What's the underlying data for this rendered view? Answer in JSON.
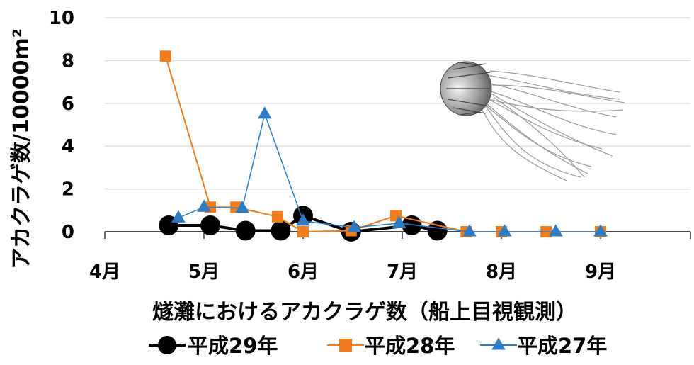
{
  "chart_data": {
    "type": "line",
    "title": "",
    "xlabel": "燧灘におけるアカクラゲ数（船上目視観測）",
    "ylabel": "アカクラゲ数/10000m²",
    "ylim": [
      0,
      10
    ],
    "yticks": [
      "0",
      "2",
      "4",
      "6",
      "8",
      "10"
    ],
    "xticks": [
      "4月",
      "5月",
      "6月",
      "7月",
      "8月",
      "9月"
    ],
    "grid": "horizontal",
    "legend_position": "bottom",
    "series": [
      {
        "name": "平成29年",
        "color": "#000000",
        "marker": "circle",
        "points": [
          {
            "x": "4/21",
            "y": 0.3
          },
          {
            "x": "5/3",
            "y": 0.3
          },
          {
            "x": "5/14",
            "y": 0.05
          },
          {
            "x": "5/25",
            "y": 0.05
          },
          {
            "x": "6/1",
            "y": 0.75
          },
          {
            "x": "6/16",
            "y": 0.0
          },
          {
            "x": "7/4",
            "y": 0.3
          },
          {
            "x": "7/12",
            "y": 0.05
          }
        ]
      },
      {
        "name": "平成28年",
        "color": "#F07C1E",
        "marker": "square",
        "points": [
          {
            "x": "4/20",
            "y": 8.2
          },
          {
            "x": "5/3",
            "y": 1.15
          },
          {
            "x": "5/11",
            "y": 1.15
          },
          {
            "x": "5/24",
            "y": 0.7
          },
          {
            "x": "6/1",
            "y": 0.0
          },
          {
            "x": "6/16",
            "y": 0.05
          },
          {
            "x": "6/30",
            "y": 0.75
          },
          {
            "x": "7/21",
            "y": 0.0
          },
          {
            "x": "8/1",
            "y": 0.0
          },
          {
            "x": "8/15",
            "y": 0.0
          },
          {
            "x": "9/1",
            "y": 0.0
          }
        ]
      },
      {
        "name": "平成27年",
        "color": "#2E7BC4",
        "marker": "triangle",
        "points": [
          {
            "x": "4/24",
            "y": 0.65
          },
          {
            "x": "5/1",
            "y": 1.15
          },
          {
            "x": "5/13",
            "y": 1.1
          },
          {
            "x": "5/20",
            "y": 5.5
          },
          {
            "x": "6/1",
            "y": 0.5
          },
          {
            "x": "6/17",
            "y": 0.2
          },
          {
            "x": "6/31",
            "y": 0.4
          },
          {
            "x": "7/22",
            "y": 0.0
          },
          {
            "x": "8/2",
            "y": 0.0
          },
          {
            "x": "8/18",
            "y": 0.0
          },
          {
            "x": "9/1",
            "y": 0.0
          }
        ]
      }
    ]
  },
  "illustration": "jellyfish"
}
